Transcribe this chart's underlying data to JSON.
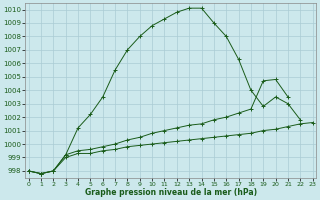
{
  "xlabel": "Graphe pression niveau de la mer (hPa)",
  "bg_color": "#cce8ec",
  "grid_color": "#aaccd4",
  "line_color": "#1a5c1a",
  "xlim": [
    -0.3,
    23.3
  ],
  "ylim": [
    997.5,
    1010.5
  ],
  "yticks": [
    998,
    999,
    1000,
    1001,
    1002,
    1003,
    1004,
    1005,
    1006,
    1007,
    1008,
    1009,
    1010
  ],
  "xticks": [
    0,
    1,
    2,
    3,
    4,
    5,
    6,
    7,
    8,
    9,
    10,
    11,
    12,
    13,
    14,
    15,
    16,
    17,
    18,
    19,
    20,
    21,
    22,
    23
  ],
  "line1_x": [
    0,
    1,
    2,
    3,
    4,
    5,
    6,
    7,
    8,
    9,
    10,
    11,
    12,
    13,
    14,
    15,
    16,
    17,
    18,
    19,
    20,
    21,
    22
  ],
  "line1_y": [
    998.0,
    997.8,
    998.0,
    999.2,
    1001.2,
    1002.2,
    1003.5,
    1005.5,
    1007.0,
    1008.0,
    1008.8,
    1009.3,
    1009.8,
    1010.1,
    1010.1,
    1009.0,
    1008.0,
    1006.3,
    1004.0,
    1002.8,
    1003.5,
    1003.0,
    1001.8
  ],
  "line2_x": [
    0,
    1,
    2,
    3,
    4,
    5,
    6,
    7,
    8,
    9,
    10,
    11,
    12,
    13,
    14,
    15,
    16,
    17,
    18,
    19,
    20,
    21
  ],
  "line2_y": [
    998.0,
    997.8,
    998.0,
    999.2,
    999.5,
    999.6,
    999.8,
    1000.0,
    1000.3,
    1000.5,
    1000.8,
    1001.0,
    1001.2,
    1001.4,
    1001.5,
    1001.8,
    1002.0,
    1002.3,
    1002.6,
    1004.7,
    1004.8,
    1003.5
  ],
  "line3_x": [
    0,
    1,
    2,
    3,
    4,
    5,
    6,
    7,
    8,
    9,
    10,
    11,
    12,
    13,
    14,
    15,
    16,
    17,
    18,
    19,
    20,
    21,
    22,
    23
  ],
  "line3_y": [
    998.0,
    997.8,
    998.0,
    999.0,
    999.3,
    999.3,
    999.5,
    999.6,
    999.8,
    999.9,
    1000.0,
    1000.1,
    1000.2,
    1000.3,
    1000.4,
    1000.5,
    1000.6,
    1000.7,
    1000.8,
    1001.0,
    1001.1,
    1001.3,
    1001.5,
    1001.6
  ]
}
